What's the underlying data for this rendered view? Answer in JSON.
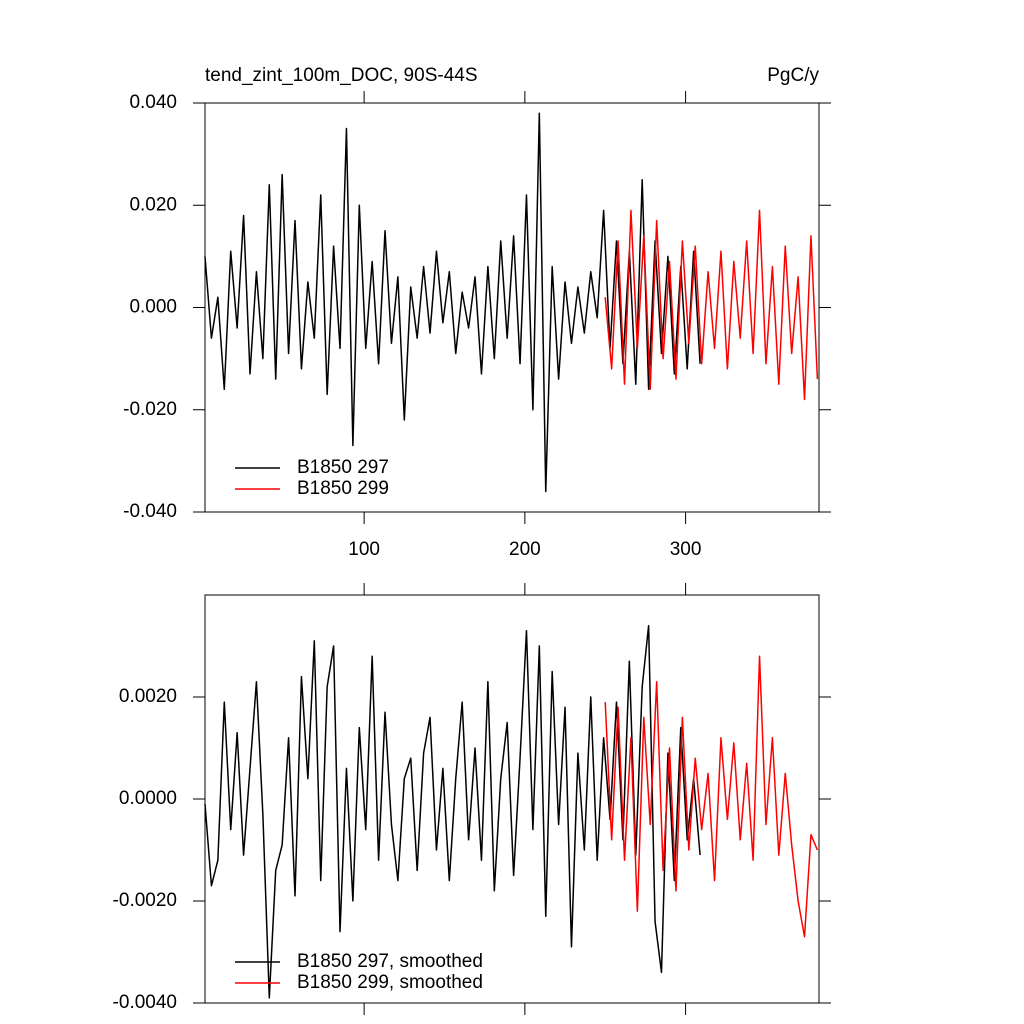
{
  "chart_data": [
    {
      "type": "line",
      "title": "tend_zint_100m_DOC, 90S-44S",
      "units": "PgC/y",
      "xlim": [
        1,
        383
      ],
      "xticks": [
        100,
        200,
        300
      ],
      "show_xtick_labels": true,
      "ylim": [
        -0.04,
        0.04
      ],
      "yticks": [
        {
          "value": -0.04,
          "label": "-0.040"
        },
        {
          "value": -0.02,
          "label": "-0.020"
        },
        {
          "value": 0,
          "label": "0.000"
        },
        {
          "value": 0.02,
          "label": "0.020"
        },
        {
          "value": 0.04,
          "label": "0.040"
        }
      ],
      "series": [
        {
          "name": "B1850 297",
          "color": "#000000",
          "x": [
            1,
            5,
            9,
            13,
            17,
            21,
            25,
            29,
            33,
            37,
            41,
            45,
            49,
            53,
            57,
            61,
            65,
            69,
            73,
            77,
            81,
            85,
            89,
            93,
            97,
            101,
            105,
            109,
            113,
            117,
            121,
            125,
            129,
            133,
            137,
            141,
            145,
            149,
            153,
            157,
            161,
            165,
            169,
            173,
            177,
            181,
            185,
            189,
            193,
            197,
            201,
            205,
            209,
            213,
            217,
            221,
            225,
            229,
            233,
            237,
            241,
            245,
            249,
            253,
            257,
            261,
            265,
            269,
            273,
            277,
            281,
            285,
            289,
            293,
            297,
            301,
            305,
            309
          ],
          "values": [
            0.01,
            -0.006,
            0.002,
            -0.016,
            0.011,
            -0.004,
            0.018,
            -0.013,
            0.007,
            -0.01,
            0.024,
            -0.014,
            0.026,
            -0.009,
            0.017,
            -0.012,
            0.005,
            -0.006,
            0.022,
            -0.017,
            0.012,
            -0.008,
            0.035,
            -0.027,
            0.02,
            -0.008,
            0.009,
            -0.011,
            0.015,
            -0.007,
            0.006,
            -0.022,
            0.004,
            -0.006,
            0.008,
            -0.005,
            0.011,
            -0.003,
            0.007,
            -0.009,
            0.003,
            -0.004,
            0.006,
            -0.013,
            0.008,
            -0.01,
            0.013,
            -0.006,
            0.014,
            -0.011,
            0.022,
            -0.02,
            0.038,
            -0.036,
            0.008,
            -0.014,
            0.005,
            -0.007,
            0.004,
            -0.005,
            0.007,
            -0.002,
            0.019,
            -0.008,
            0.013,
            -0.011,
            0.011,
            -0.015,
            0.025,
            -0.016,
            0.013,
            -0.009,
            0.01,
            -0.013,
            0.008,
            -0.012,
            0.011,
            -0.011
          ]
        },
        {
          "name": "B1850 299",
          "color": "#ff0000",
          "x": [
            250,
            254,
            258,
            262,
            266,
            270,
            274,
            278,
            282,
            286,
            290,
            294,
            298,
            302,
            306,
            310,
            314,
            318,
            322,
            326,
            330,
            334,
            338,
            342,
            346,
            350,
            354,
            358,
            362,
            366,
            370,
            374,
            378,
            382
          ],
          "values": [
            0.002,
            -0.012,
            0.013,
            -0.015,
            0.019,
            -0.008,
            0.014,
            -0.016,
            0.017,
            -0.01,
            0.009,
            -0.014,
            0.013,
            -0.007,
            0.012,
            -0.011,
            0.007,
            -0.008,
            0.011,
            -0.012,
            0.009,
            -0.006,
            0.013,
            -0.009,
            0.019,
            -0.011,
            0.008,
            -0.015,
            0.012,
            -0.009,
            0.006,
            -0.018,
            0.014,
            -0.014
          ]
        }
      ]
    },
    {
      "type": "line",
      "xlim": [
        1,
        383
      ],
      "xticks": [
        100,
        200,
        300
      ],
      "show_xtick_labels": false,
      "ylim": [
        -0.004,
        0.004
      ],
      "yticks": [
        {
          "value": -0.004,
          "label": "-0.0040"
        },
        {
          "value": -0.002,
          "label": "-0.0020"
        },
        {
          "value": 0,
          "label": "0.0000"
        },
        {
          "value": 0.002,
          "label": "0.0020"
        }
      ],
      "series": [
        {
          "name": "B1850 297, smoothed",
          "color": "#000000",
          "x": [
            1,
            5,
            9,
            13,
            17,
            21,
            25,
            29,
            33,
            37,
            41,
            45,
            49,
            53,
            57,
            61,
            65,
            69,
            73,
            77,
            81,
            85,
            89,
            93,
            97,
            101,
            105,
            109,
            113,
            117,
            121,
            125,
            129,
            133,
            137,
            141,
            145,
            149,
            153,
            157,
            161,
            165,
            169,
            173,
            177,
            181,
            185,
            189,
            193,
            197,
            201,
            205,
            209,
            213,
            217,
            221,
            225,
            229,
            233,
            237,
            241,
            245,
            249,
            253,
            257,
            261,
            265,
            269,
            273,
            277,
            281,
            285,
            289,
            293,
            297,
            301,
            305,
            309
          ],
          "values": [
            -0.0001,
            -0.0017,
            -0.0012,
            0.0019,
            -0.0006,
            0.0013,
            -0.0011,
            0.0006,
            0.0023,
            -0.0003,
            -0.0039,
            -0.0014,
            -0.0009,
            0.0012,
            -0.0019,
            0.0024,
            0.0004,
            0.0031,
            -0.0016,
            0.0022,
            0.003,
            -0.0026,
            0.0006,
            -0.002,
            0.0014,
            -0.0006,
            0.0028,
            -0.0012,
            0.0017,
            -0.0005,
            -0.0016,
            0.0004,
            0.0008,
            -0.0014,
            0.0009,
            0.0016,
            -0.001,
            0.0006,
            -0.0016,
            0.0004,
            0.0019,
            -0.0008,
            0.001,
            -0.0012,
            0.0023,
            -0.0018,
            0.0004,
            0.0015,
            -0.0015,
            0.0008,
            0.0033,
            -0.0006,
            0.003,
            -0.0023,
            0.0025,
            -0.0005,
            0.0018,
            -0.0029,
            0.0009,
            -0.001,
            0.002,
            -0.0012,
            0.0012,
            -0.0004,
            0.0019,
            -0.0008,
            0.0027,
            -0.0011,
            0.0022,
            0.0034,
            -0.0024,
            -0.0034,
            0.0009,
            -0.0016,
            0.0014,
            -0.0008,
            0.0004,
            -0.0011
          ]
        },
        {
          "name": "B1850 299, smoothed",
          "color": "#ff0000",
          "x": [
            250,
            254,
            258,
            262,
            266,
            270,
            274,
            278,
            282,
            286,
            290,
            294,
            298,
            302,
            306,
            310,
            314,
            318,
            322,
            326,
            330,
            334,
            338,
            342,
            346,
            350,
            354,
            358,
            362,
            366,
            370,
            374,
            378,
            382
          ],
          "values": [
            0.0019,
            -0.0008,
            0.0018,
            -0.0012,
            0.0012,
            -0.0022,
            0.0016,
            -0.0005,
            0.0023,
            -0.0014,
            0.001,
            -0.0018,
            0.0016,
            -0.001,
            0.0008,
            -0.0006,
            0.0005,
            -0.0016,
            0.0012,
            -0.0004,
            0.0011,
            -0.0008,
            0.0007,
            -0.0012,
            0.0028,
            -0.0005,
            0.0012,
            -0.0011,
            0.0005,
            -0.0009,
            -0.002,
            -0.0027,
            -0.0007,
            -0.001
          ]
        }
      ]
    }
  ]
}
